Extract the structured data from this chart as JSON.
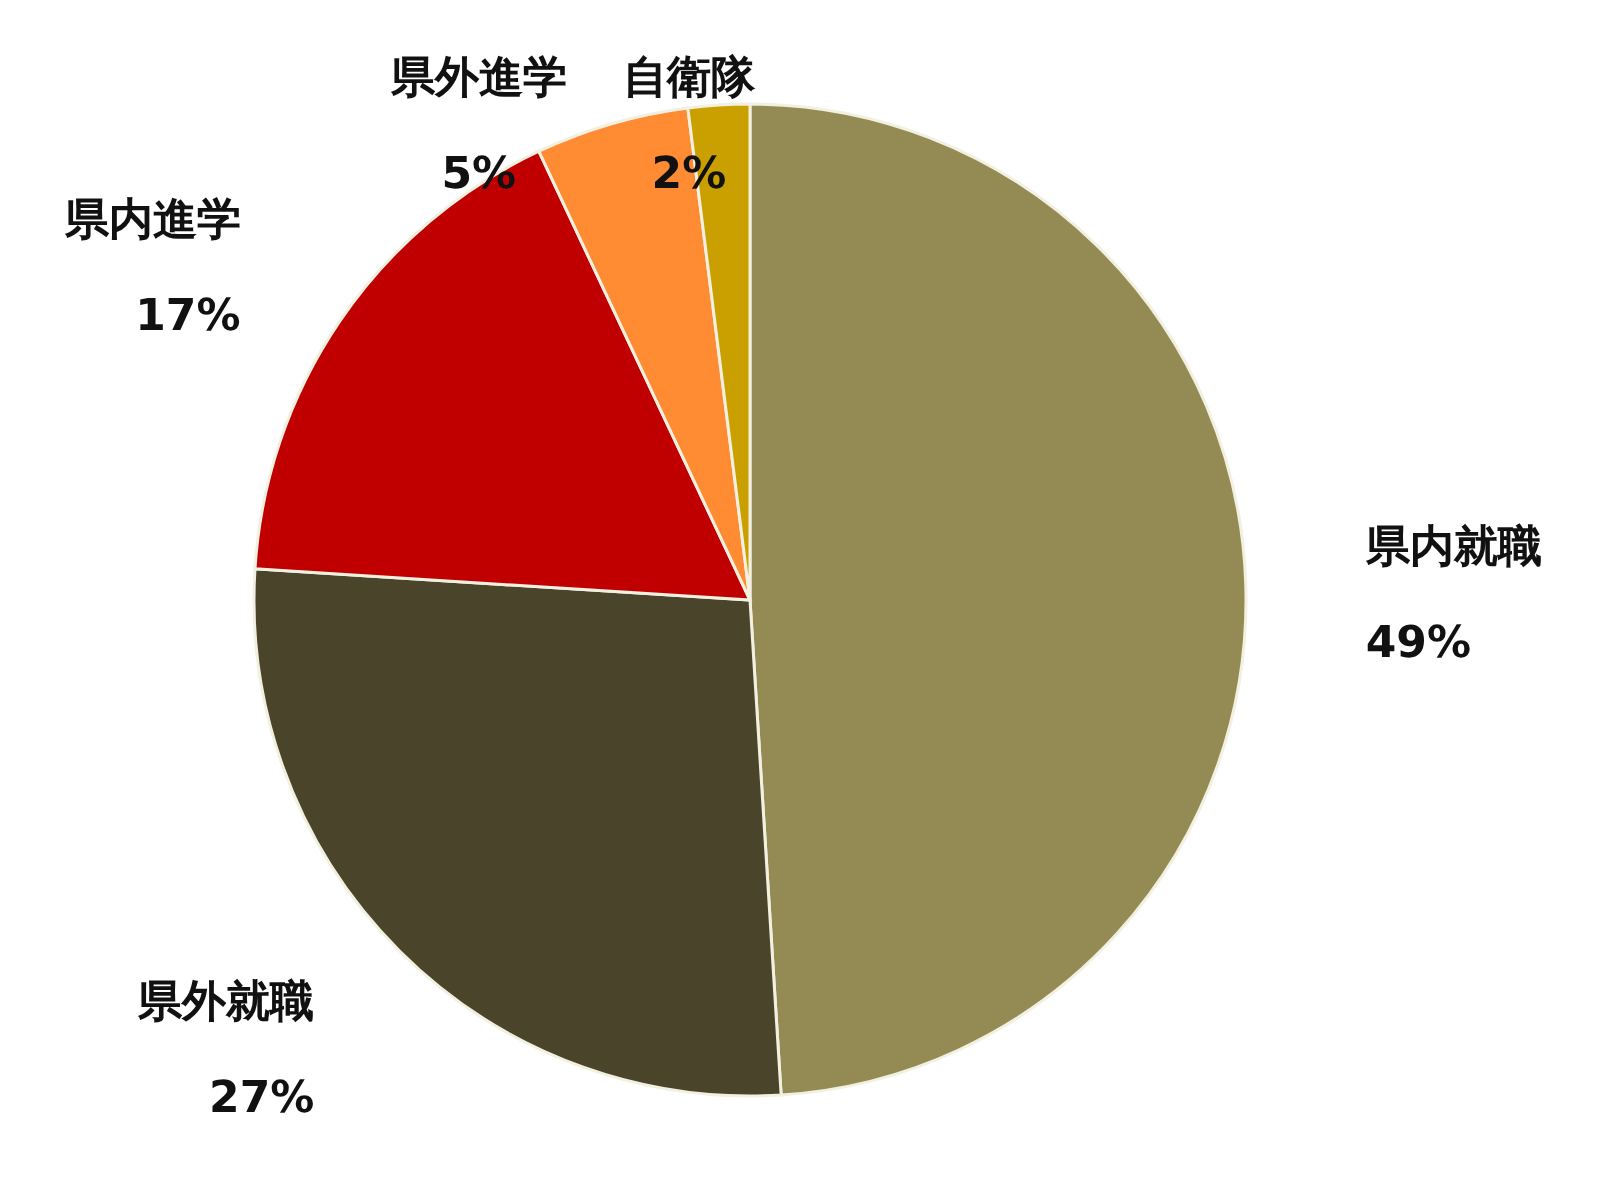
{
  "chart_data": {
    "type": "pie",
    "categories": [
      "県内就職",
      "県外就職",
      "県内進学",
      "県外進学",
      "自衛隊"
    ],
    "values": [
      49,
      27,
      17,
      5,
      2
    ],
    "colors": [
      "#948b54",
      "#4a442a",
      "#c00000",
      "#ff8b33",
      "#c9a000"
    ],
    "value_labels": [
      "49%",
      "27%",
      "17%",
      "5%",
      "2%"
    ]
  }
}
